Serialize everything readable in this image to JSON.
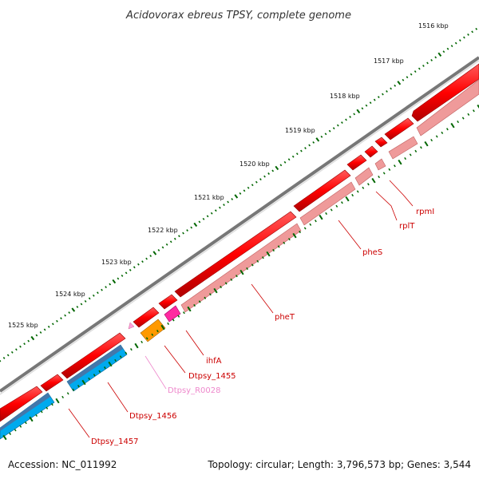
{
  "title": "Acidovorax ebreus TPSY, complete genome",
  "footer": {
    "accession": "Accession: NC_011992",
    "summary": "Topology: circular; Length: 3,796,573 bp; Genes: 3,544"
  },
  "ruler": [
    "1516 kbp",
    "1517 kbp",
    "1518 kbp",
    "1519 kbp",
    "1520 kbp",
    "1521 kbp",
    "1522 kbp",
    "1523 kbp",
    "1524 kbp",
    "1525 kbp"
  ],
  "genes": [
    {
      "name": "rpmI",
      "color": "#cc0000"
    },
    {
      "name": "rplT",
      "color": "#cc0000"
    },
    {
      "name": "pheS",
      "color": "#cc0000"
    },
    {
      "name": "pheT",
      "color": "#cc0000"
    },
    {
      "name": "ihfA",
      "color": "#cc0000"
    },
    {
      "name": "Dtpsy_1455",
      "color": "#cc0000"
    },
    {
      "name": "Dtpsy_R0028",
      "color": "#ee88cc"
    },
    {
      "name": "Dtpsy_1456",
      "color": "#cc0000"
    },
    {
      "name": "Dtpsy_1457",
      "color": "#cc0000"
    }
  ],
  "colors": {
    "cds": "#ff0000",
    "cds_shade": "#ef9a9a",
    "trna": "#ffa0d8",
    "rrna": "#ff9900",
    "gene_pink": "#ff2aa0",
    "blue_cds": "#00aaee",
    "blue_shade": "#4477aa",
    "backbone": "#777777",
    "tick": "#006600"
  }
}
